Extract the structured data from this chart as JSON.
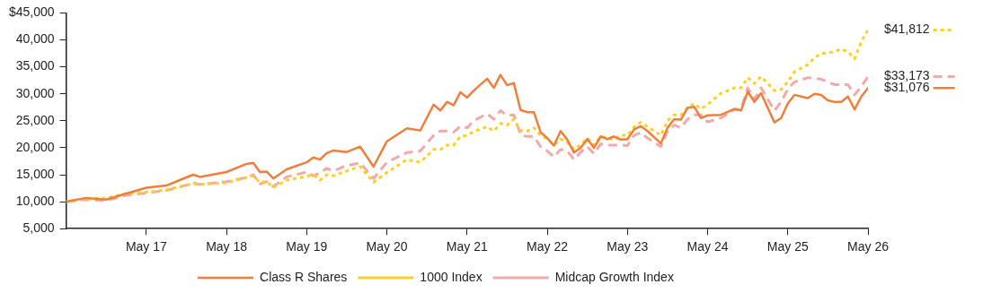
{
  "chart_data": {
    "type": "line",
    "x": [
      "2016-05",
      "2016-08",
      "2016-11",
      "2017-02",
      "2017-05",
      "2017-08",
      "2017-10",
      "2017-12",
      "2018-01",
      "2018-05",
      "2018-08",
      "2018-09",
      "2018-10",
      "2018-11",
      "2018-12",
      "2019-02",
      "2019-05",
      "2019-06",
      "2019-07",
      "2019-08",
      "2019-09",
      "2019-11",
      "2020-01",
      "2020-03",
      "2020-05",
      "2020-08",
      "2020-10",
      "2020-12",
      "2021-01",
      "2021-02",
      "2021-03",
      "2021-04",
      "2021-05",
      "2021-06",
      "2021-08",
      "2021-09",
      "2021-10",
      "2021-11",
      "2021-12",
      "2022-01",
      "2022-02",
      "2022-03",
      "2022-04",
      "2022-05",
      "2022-06",
      "2022-07",
      "2022-08",
      "2022-09",
      "2022-10",
      "2022-11",
      "2022-12",
      "2023-01",
      "2023-02",
      "2023-03",
      "2023-04",
      "2023-05",
      "2023-06",
      "2023-07",
      "2023-08",
      "2023-10",
      "2023-11",
      "2023-12",
      "2024-01",
      "2024-02",
      "2024-03",
      "2024-04",
      "2024-05",
      "2024-07",
      "2024-09",
      "2024-10",
      "2024-11",
      "2024-12",
      "2025-01",
      "2025-03",
      "2025-04",
      "2025-05",
      "2025-06",
      "2025-08",
      "2025-09",
      "2025-10",
      "2025-11",
      "2025-12",
      "2026-01",
      "2026-02",
      "2026-03",
      "2026-04",
      "2026-05"
    ],
    "series": [
      {
        "name": "Class R Shares",
        "color": "#ee7f3d",
        "line_style": "solid",
        "values": [
          10000,
          10700,
          10400,
          11500,
          12600,
          13000,
          14000,
          15000,
          14600,
          15500,
          17000,
          17200,
          15500,
          15600,
          14300,
          16000,
          17300,
          18200,
          17800,
          19000,
          19500,
          19200,
          20200,
          16500,
          21200,
          23600,
          23200,
          28000,
          26900,
          28500,
          27900,
          30300,
          29300,
          30600,
          32800,
          31100,
          33500,
          31600,
          32000,
          27000,
          26600,
          26600,
          22900,
          21800,
          20400,
          23100,
          21500,
          19100,
          20000,
          21600,
          20000,
          22100,
          21600,
          22100,
          21500,
          21600,
          23400,
          24000,
          23100,
          20800,
          23700,
          25300,
          25200,
          27400,
          27600,
          25500,
          26000,
          26100,
          27200,
          26900,
          30400,
          28500,
          30100,
          24700,
          25500,
          28200,
          29800,
          29200,
          30000,
          29800,
          28800,
          28500,
          28500,
          29500,
          27100,
          29500,
          31076
        ],
        "value_labels": [
          null,
          null,
          null,
          null,
          null,
          null,
          null,
          null,
          null,
          null,
          null,
          null,
          null,
          null,
          null,
          null,
          null,
          null,
          null,
          null,
          null,
          null,
          null,
          null,
          null,
          null,
          null,
          null,
          null,
          null,
          null,
          null,
          null,
          null,
          null,
          null,
          null,
          null,
          null,
          null,
          null,
          null,
          null,
          null,
          null,
          null,
          null,
          null,
          null,
          null,
          null,
          null,
          null,
          null,
          null,
          null,
          null,
          null,
          null,
          null,
          null,
          null,
          null,
          null,
          null,
          null,
          null,
          null,
          null,
          null,
          null,
          null,
          null,
          null,
          null,
          null,
          null,
          null,
          null,
          null,
          null,
          null,
          null,
          null,
          null,
          null,
          "$31,076"
        ]
      },
      {
        "name": "1000 Index",
        "color": "#fbd124",
        "line_style": "dotted",
        "values": [
          10000,
          10500,
          10700,
          11500,
          11800,
          12200,
          12800,
          13300,
          13200,
          13500,
          14500,
          14800,
          13500,
          13800,
          12600,
          14000,
          14700,
          15000,
          14000,
          15000,
          14800,
          15700,
          16500,
          13600,
          15400,
          17800,
          17300,
          19700,
          19700,
          20500,
          20500,
          22100,
          22300,
          23000,
          23900,
          23100,
          24500,
          24200,
          25300,
          23200,
          23100,
          23700,
          22300,
          21600,
          20500,
          21600,
          21000,
          19700,
          20500,
          21800,
          20500,
          22100,
          21800,
          21500,
          22300,
          22300,
          23900,
          24700,
          23900,
          22300,
          25000,
          26100,
          26100,
          27400,
          28200,
          27200,
          28000,
          30100,
          31100,
          31100,
          33000,
          31900,
          33200,
          30600,
          30800,
          32200,
          34100,
          35400,
          36700,
          37500,
          37600,
          37800,
          38300,
          37800,
          36500,
          39700,
          41812
        ],
        "value_labels": [
          null,
          null,
          null,
          null,
          null,
          null,
          null,
          null,
          null,
          null,
          null,
          null,
          null,
          null,
          null,
          null,
          null,
          null,
          null,
          null,
          null,
          null,
          null,
          null,
          null,
          null,
          null,
          null,
          null,
          null,
          null,
          null,
          null,
          null,
          null,
          null,
          null,
          null,
          null,
          null,
          null,
          null,
          null,
          null,
          null,
          null,
          null,
          null,
          null,
          null,
          null,
          null,
          null,
          null,
          null,
          null,
          null,
          null,
          null,
          null,
          null,
          null,
          null,
          null,
          null,
          null,
          null,
          null,
          null,
          null,
          null,
          null,
          null,
          null,
          null,
          null,
          null,
          null,
          null,
          null,
          null,
          null,
          null,
          null,
          null,
          null,
          "$41,812"
        ]
      },
      {
        "name": "Midcap Growth Index",
        "color": "#f2a9a9",
        "line_style": "dashed",
        "values": [
          10000,
          10400,
          10200,
          11200,
          11600,
          12100,
          12700,
          13500,
          13200,
          13700,
          14500,
          15000,
          13300,
          13700,
          12800,
          14600,
          15500,
          14800,
          15300,
          16200,
          15700,
          16700,
          17200,
          14300,
          17300,
          19100,
          19400,
          22300,
          23100,
          23100,
          22900,
          24000,
          23700,
          25000,
          26300,
          25300,
          26900,
          26000,
          26100,
          22400,
          22100,
          22100,
          20200,
          19400,
          18300,
          19700,
          19400,
          17800,
          19200,
          20200,
          18900,
          20700,
          20500,
          20500,
          20500,
          20400,
          22300,
          22800,
          21800,
          20200,
          23100,
          24200,
          23700,
          25300,
          26100,
          26100,
          24800,
          25500,
          27100,
          27100,
          31100,
          29000,
          31100,
          26900,
          28500,
          30900,
          32200,
          33000,
          32900,
          32700,
          32200,
          31700,
          31700,
          31700,
          29800,
          31400,
          33173
        ],
        "value_labels": [
          null,
          null,
          null,
          null,
          null,
          null,
          null,
          null,
          null,
          null,
          null,
          null,
          null,
          null,
          null,
          null,
          null,
          null,
          null,
          null,
          null,
          null,
          null,
          null,
          null,
          null,
          null,
          null,
          null,
          null,
          null,
          null,
          null,
          null,
          null,
          null,
          null,
          null,
          null,
          null,
          null,
          null,
          null,
          null,
          null,
          null,
          null,
          null,
          null,
          null,
          null,
          null,
          null,
          null,
          null,
          null,
          null,
          null,
          null,
          null,
          null,
          null,
          null,
          null,
          null,
          null,
          null,
          null,
          null,
          null,
          null,
          null,
          null,
          null,
          null,
          null,
          null,
          null,
          null,
          null,
          null,
          null,
          null,
          null,
          null,
          null,
          "$33,173"
        ]
      }
    ],
    "xlim": [
      "2016-05",
      "2026-05"
    ],
    "xticks": [
      {
        "value": "2017-05",
        "label": "May 17"
      },
      {
        "value": "2018-05",
        "label": "May 18"
      },
      {
        "value": "2019-05",
        "label": "May 19"
      },
      {
        "value": "2020-05",
        "label": "May 20"
      },
      {
        "value": "2021-05",
        "label": "May 21"
      },
      {
        "value": "2022-05",
        "label": "May 22"
      },
      {
        "value": "2023-05",
        "label": "May 23"
      },
      {
        "value": "2024-05",
        "label": "May 24"
      },
      {
        "value": "2025-05",
        "label": "May 25"
      },
      {
        "value": "2026-05",
        "label": "May 26"
      }
    ],
    "ylim": [
      5000,
      45000
    ],
    "yticks": [
      {
        "value": 5000,
        "label": "5,000"
      },
      {
        "value": 10000,
        "label": "10,000"
      },
      {
        "value": 15000,
        "label": "15,000"
      },
      {
        "value": 20000,
        "label": "20,000"
      },
      {
        "value": 25000,
        "label": "25,000"
      },
      {
        "value": 30000,
        "label": "30,000"
      },
      {
        "value": 35000,
        "label": "35,000"
      },
      {
        "value": 40000,
        "label": "40,000"
      },
      {
        "value": 45000,
        "label": "$45,000"
      }
    ],
    "grid": false,
    "legend": "bottom",
    "marker": "none"
  }
}
